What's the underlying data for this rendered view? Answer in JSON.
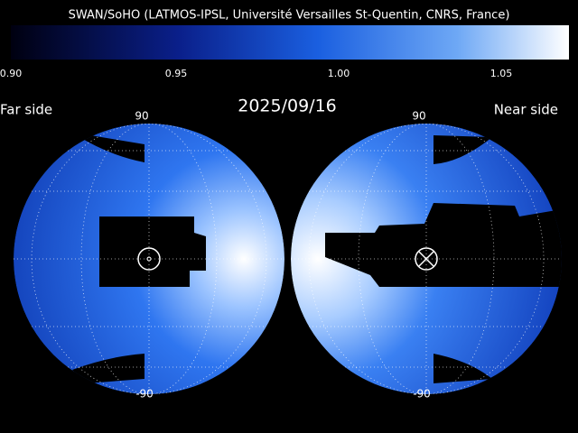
{
  "header": {
    "title": "SWAN/SoHO (LATMOS-IPSL, Université Versailles St-Quentin, CNRS, France)"
  },
  "colorbar": {
    "ticks": [
      "0.90",
      "0.95",
      "1.00",
      "1.05"
    ]
  },
  "date": "2025/09/16",
  "left_panel": {
    "label": "Far side",
    "top_label": "90",
    "bottom_label": "-90"
  },
  "right_panel": {
    "label": "Near side",
    "top_label": "90",
    "bottom_label": "-90"
  }
}
